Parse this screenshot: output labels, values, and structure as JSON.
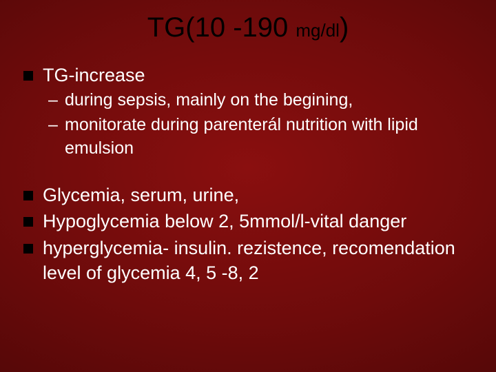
{
  "colors": {
    "background_center": "#8a0f0f",
    "background_edge": "#2a0303",
    "title_color": "#000000",
    "text_color": "#ffffff",
    "bullet_color": "#000000"
  },
  "typography": {
    "title_fontsize": 40,
    "title_sub_fontsize": 26,
    "body_fontsize": 27,
    "sub_fontsize": 25,
    "font_family": "Verdana"
  },
  "title": {
    "main_a": "TG(10 -190 ",
    "unit": "mg/dl",
    "main_b": ")"
  },
  "bullets": [
    {
      "level": 1,
      "text": "TG-increase"
    },
    {
      "level": 2,
      "text": "during sepsis, mainly on the begining,"
    },
    {
      "level": 2,
      "text": "monitorate during parenterál nutrition with lipid emulsion"
    },
    {
      "level": 0,
      "text": ""
    },
    {
      "level": 1,
      "text": "Glycemia, serum, urine,"
    },
    {
      "level": 1,
      "text": "Hypoglycemia below 2, 5mmol/l-vital danger"
    },
    {
      "level": 1,
      "text": "hyperglycemia- insulin. rezistence, recomendation level of glycemia 4, 5 -8, 2"
    }
  ]
}
